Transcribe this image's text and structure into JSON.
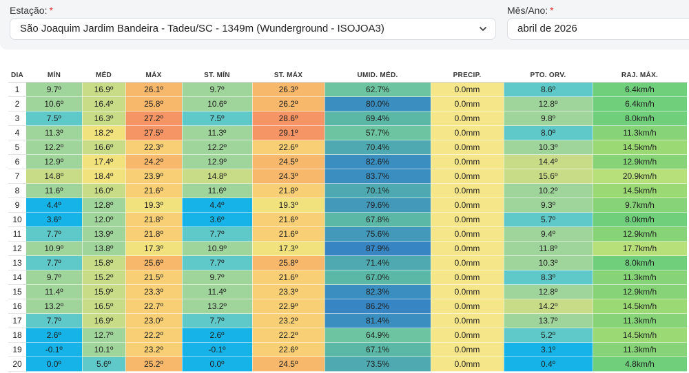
{
  "filters": {
    "station_label": "Estação:",
    "station_required": "*",
    "station_value": "São Joaquim Jardim Bandeira - Tadeu/SC - 1349m (Wunderground - ISOJOA3)",
    "month_label": "Mês/Ano:",
    "month_required": "*",
    "month_value": "abril de 2026"
  },
  "table": {
    "headers": [
      "DIA",
      "MÍN",
      "MÉD",
      "MÁX",
      "ST. MÍN",
      "ST. MÁX",
      "UMID. MÉD.",
      "PRECIP.",
      "PTO. ORV.",
      "RAJ. MÁX."
    ],
    "rows": [
      [
        "1",
        "9.7º",
        "16.9º",
        "26.1º",
        "9.7º",
        "26.3º",
        "62.7%",
        "0.0mm",
        "8.6º",
        "6.4km/h"
      ],
      [
        "2",
        "10.6º",
        "16.4º",
        "25.8º",
        "10.6º",
        "26.2º",
        "80.0%",
        "0.0mm",
        "12.8º",
        "6.4km/h"
      ],
      [
        "3",
        "7.5º",
        "16.3º",
        "27.2º",
        "7.5º",
        "28.6º",
        "69.4%",
        "0.0mm",
        "9.8º",
        "8.0km/h"
      ],
      [
        "4",
        "11.3º",
        "18.2º",
        "27.5º",
        "11.3º",
        "29.1º",
        "57.7%",
        "0.0mm",
        "8.0º",
        "11.3km/h"
      ],
      [
        "5",
        "12.2º",
        "16.6º",
        "22.3º",
        "12.2º",
        "22.6º",
        "70.4%",
        "0.0mm",
        "10.3º",
        "14.5km/h"
      ],
      [
        "6",
        "12.9º",
        "17.4º",
        "24.2º",
        "12.9º",
        "24.5º",
        "82.6%",
        "0.0mm",
        "14.4º",
        "12.9km/h"
      ],
      [
        "7",
        "14.8º",
        "18.4º",
        "23.9º",
        "14.8º",
        "24.3º",
        "83.7%",
        "0.0mm",
        "15.6º",
        "20.9km/h"
      ],
      [
        "8",
        "11.6º",
        "16.0º",
        "21.6º",
        "11.6º",
        "21.8º",
        "70.1%",
        "0.0mm",
        "10.2º",
        "14.5km/h"
      ],
      [
        "9",
        "4.4º",
        "12.8º",
        "19.3º",
        "4.4º",
        "19.3º",
        "79.6%",
        "0.0mm",
        "9.3º",
        "9.7km/h"
      ],
      [
        "10",
        "3.6º",
        "12.0º",
        "21.8º",
        "3.6º",
        "21.6º",
        "67.8%",
        "0.0mm",
        "5.7º",
        "8.0km/h"
      ],
      [
        "11",
        "7.7º",
        "13.9º",
        "21.8º",
        "7.7º",
        "21.6º",
        "75.6%",
        "0.0mm",
        "9.4º",
        "12.9km/h"
      ],
      [
        "12",
        "10.9º",
        "13.8º",
        "17.3º",
        "10.9º",
        "17.3º",
        "87.9%",
        "0.0mm",
        "11.8º",
        "17.7km/h"
      ],
      [
        "13",
        "7.7º",
        "15.8º",
        "25.6º",
        "7.7º",
        "25.8º",
        "71.4%",
        "0.0mm",
        "10.3º",
        "8.0km/h"
      ],
      [
        "14",
        "9.7º",
        "15.2º",
        "21.5º",
        "9.7º",
        "21.6º",
        "67.0%",
        "0.0mm",
        "8.3º",
        "11.3km/h"
      ],
      [
        "15",
        "11.4º",
        "15.9º",
        "23.3º",
        "11.4º",
        "23.3º",
        "82.3%",
        "0.0mm",
        "12.8º",
        "12.9km/h"
      ],
      [
        "16",
        "13.2º",
        "16.5º",
        "22.7º",
        "13.2º",
        "22.9º",
        "86.2%",
        "0.0mm",
        "14.2º",
        "14.5km/h"
      ],
      [
        "17",
        "7.7º",
        "16.9º",
        "23.0º",
        "7.7º",
        "23.2º",
        "81.4%",
        "0.0mm",
        "13.7º",
        "11.3km/h"
      ],
      [
        "18",
        "2.6º",
        "12.7º",
        "22.2º",
        "2.6º",
        "22.2º",
        "64.9%",
        "0.0mm",
        "5.2º",
        "14.5km/h"
      ],
      [
        "19",
        "-0.1º",
        "10.1º",
        "23.2º",
        "-0.1º",
        "22.6º",
        "67.1%",
        "0.0mm",
        "3.1º",
        "11.3km/h"
      ],
      [
        "20",
        "0.0º",
        "5.6º",
        "25.2º",
        "0.0º",
        "24.5º",
        "73.5%",
        "0.0mm",
        "0.4º",
        "4.8km/h"
      ]
    ]
  },
  "colors": {
    "temp_cold": "#16b3e8",
    "temp_cool": "#5fc8c8",
    "temp_mild": "#9fd49a",
    "temp_warm": "#f2e27e",
    "temp_hot": "#f7b86b",
    "temp_very_hot": "#f59565",
    "humid_low": "#66c2a4",
    "humid_high": "#3a8fc0",
    "precip_zero": "#f5e68a",
    "wind_low": "#6fcf7b",
    "wind_high": "#b8e07a"
  }
}
